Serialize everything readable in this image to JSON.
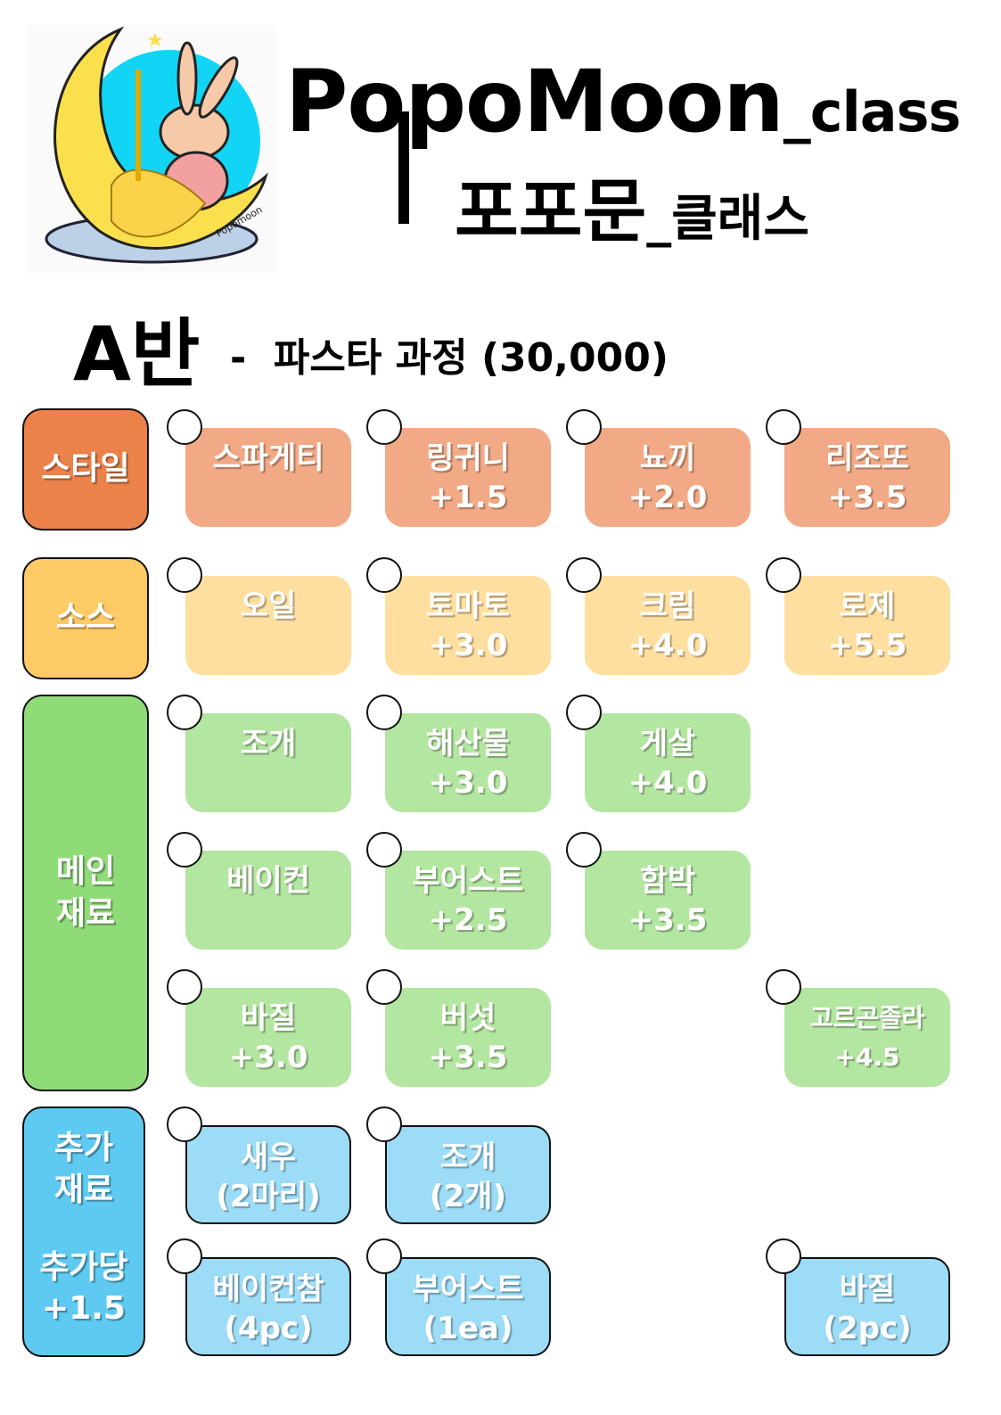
{
  "header": {
    "logo_text": "Popomoon",
    "title_en_main": "PopoMoon",
    "title_en_suffix": "_class",
    "title_ko_main": "포포문",
    "title_ko_suffix": "_클래스"
  },
  "course": {
    "class_name": "A반",
    "separator": "-",
    "description": "파스타 과정 (30,000)"
  },
  "categories": {
    "style": {
      "label": "스타일",
      "color": "#ea824a"
    },
    "sauce": {
      "label": "소스",
      "color": "#fdca65"
    },
    "main": {
      "label_line1": "메인",
      "label_line2": "재료",
      "color": "#8fdb78"
    },
    "extra": {
      "label_line1": "추가",
      "label_line2": "재료",
      "per_label": "추가당",
      "per_price": "+1.5",
      "color": "#5ecaf2"
    }
  },
  "style_items": [
    {
      "name": "스파게티",
      "price": ""
    },
    {
      "name": "링귀니",
      "price": "+1.5"
    },
    {
      "name": "뇨끼",
      "price": "+2.0"
    },
    {
      "name": "리조또",
      "price": "+3.5"
    }
  ],
  "sauce_items": [
    {
      "name": "오일",
      "price": ""
    },
    {
      "name": "토마토",
      "price": "+3.0"
    },
    {
      "name": "크림",
      "price": "+4.0"
    },
    {
      "name": "로제",
      "price": "+5.5"
    }
  ],
  "main_items": [
    {
      "name": "조개",
      "price": ""
    },
    {
      "name": "해산물",
      "price": "+3.0"
    },
    {
      "name": "게살",
      "price": "+4.0"
    },
    {
      "name": "베이컨",
      "price": ""
    },
    {
      "name": "부어스트",
      "price": "+2.5"
    },
    {
      "name": "함박",
      "price": "+3.5"
    },
    {
      "name": "바질",
      "price": "+3.0"
    },
    {
      "name": "버섯",
      "price": "+3.5"
    },
    {
      "name": "고르곤졸라",
      "price": "+4.5"
    }
  ],
  "extra_items": [
    {
      "name": "새우",
      "qty": "(2마리)"
    },
    {
      "name": "조개",
      "qty": "(2개)"
    },
    {
      "name": "베이컨참",
      "qty": "(4pc)"
    },
    {
      "name": "부어스트",
      "qty": "(1ea)"
    },
    {
      "name": "바질",
      "qty": "(2pc)"
    }
  ]
}
